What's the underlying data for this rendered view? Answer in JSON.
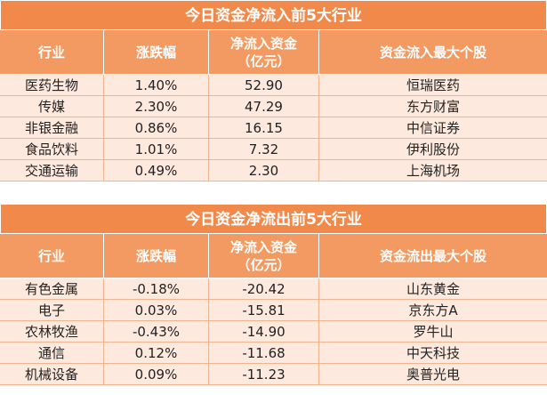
{
  "inflow": {
    "title": "今日资金净流入前5大行业",
    "headers": [
      "行业",
      "涨跌幅",
      "净流入资金\n（亿元）",
      "资金流入最大个股"
    ],
    "rows": [
      {
        "industry": "医药生物",
        "change": "1.40%",
        "amount": "52.90",
        "top_stock": "恒瑞医药"
      },
      {
        "industry": "传媒",
        "change": "2.30%",
        "amount": "47.29",
        "top_stock": "东方财富"
      },
      {
        "industry": "非银金融",
        "change": "0.86%",
        "amount": "16.15",
        "top_stock": "中信证券"
      },
      {
        "industry": "食品饮料",
        "change": "1.01%",
        "amount": "7.32",
        "top_stock": "伊利股份"
      },
      {
        "industry": "交通运输",
        "change": "0.49%",
        "amount": "2.30",
        "top_stock": "上海机场"
      }
    ]
  },
  "outflow": {
    "title": "今日资金净流出前5大行业",
    "headers": [
      "行业",
      "涨跌幅",
      "净流入资金\n（亿元）",
      "资金流出最大个股"
    ],
    "rows": [
      {
        "industry": "有色金属",
        "change": "-0.18%",
        "amount": "-20.42",
        "top_stock": "山东黄金"
      },
      {
        "industry": "电子",
        "change": "0.03%",
        "amount": "-15.81",
        "top_stock": "京东方A"
      },
      {
        "industry": "农林牧渔",
        "change": "-0.43%",
        "amount": "-14.90",
        "top_stock": "罗牛山"
      },
      {
        "industry": "通信",
        "change": "0.12%",
        "amount": "-11.68",
        "top_stock": "中天科技"
      },
      {
        "industry": "机械设备",
        "change": "0.09%",
        "amount": "-11.23",
        "top_stock": "奥普光电"
      }
    ]
  },
  "colors": {
    "title_bg": "#f0894a",
    "header_bg": "#f29a62",
    "row_bg": "#fde9dd"
  }
}
